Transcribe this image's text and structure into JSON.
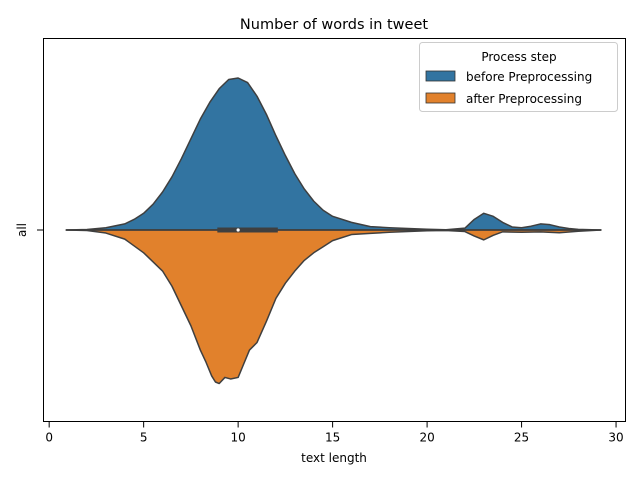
{
  "chart_data": {
    "type": "violin",
    "title": "Number of words in tweet",
    "xlabel": "text length",
    "ylabel": "",
    "category_label": "all",
    "xlim": [
      -0.3,
      30.5
    ],
    "xticks": [
      0,
      5,
      10,
      15,
      20,
      25,
      30
    ],
    "grid": false,
    "legend": {
      "title": "Process step",
      "position": "top-right",
      "entries": [
        "before Preprocessing",
        "after Preprocessing"
      ]
    },
    "series": [
      {
        "name": "before Preprocessing",
        "color": "#3274a1",
        "side": "upper",
        "x": [
          0.9,
          2,
          3,
          4,
          4.5,
          5,
          5.5,
          6,
          6.5,
          7,
          7.5,
          8,
          8.5,
          9,
          9.5,
          10,
          10.5,
          11,
          11.5,
          12,
          12.5,
          13,
          13.5,
          14,
          14.5,
          15,
          16,
          17,
          18,
          19,
          20,
          21,
          22,
          22.5,
          23,
          23.5,
          24,
          24.5,
          25,
          25.5,
          26,
          26.5,
          27,
          27.5,
          28,
          29.2
        ],
        "density": [
          0.0,
          0.003,
          0.015,
          0.04,
          0.07,
          0.11,
          0.17,
          0.25,
          0.35,
          0.47,
          0.6,
          0.73,
          0.84,
          0.93,
          0.99,
          1.0,
          0.97,
          0.88,
          0.76,
          0.62,
          0.49,
          0.37,
          0.27,
          0.19,
          0.13,
          0.09,
          0.05,
          0.022,
          0.015,
          0.01,
          0.005,
          0.002,
          0.012,
          0.07,
          0.11,
          0.09,
          0.05,
          0.02,
          0.015,
          0.025,
          0.04,
          0.035,
          0.02,
          0.01,
          0.004,
          0.0
        ]
      },
      {
        "name": "after Preprocessing",
        "color": "#e1812c",
        "side": "lower",
        "x": [
          0.9,
          2,
          3,
          4,
          5,
          6,
          6.5,
          7,
          7.5,
          8,
          8.3,
          8.6,
          8.8,
          9,
          9.3,
          9.6,
          10,
          10.3,
          10.6,
          11,
          11.5,
          12,
          12.5,
          13,
          13.5,
          14,
          14.5,
          15,
          16,
          17,
          18,
          19,
          20,
          21,
          22,
          22.5,
          23,
          23.5,
          24,
          25,
          26,
          27,
          28,
          29.2
        ],
        "density": [
          0.0,
          0.003,
          0.02,
          0.06,
          0.15,
          0.27,
          0.37,
          0.5,
          0.63,
          0.79,
          0.87,
          0.96,
          1.0,
          1.01,
          0.97,
          0.98,
          0.97,
          0.88,
          0.79,
          0.74,
          0.6,
          0.45,
          0.35,
          0.27,
          0.2,
          0.15,
          0.11,
          0.07,
          0.03,
          0.022,
          0.015,
          0.01,
          0.005,
          0.003,
          0.01,
          0.04,
          0.065,
          0.035,
          0.012,
          0.015,
          0.012,
          0.018,
          0.008,
          0.0
        ]
      }
    ],
    "box": {
      "q1": 8.9,
      "median": 10.0,
      "q3": 12.1,
      "whisker_low": 0.9,
      "whisker_high": 29.2
    }
  }
}
